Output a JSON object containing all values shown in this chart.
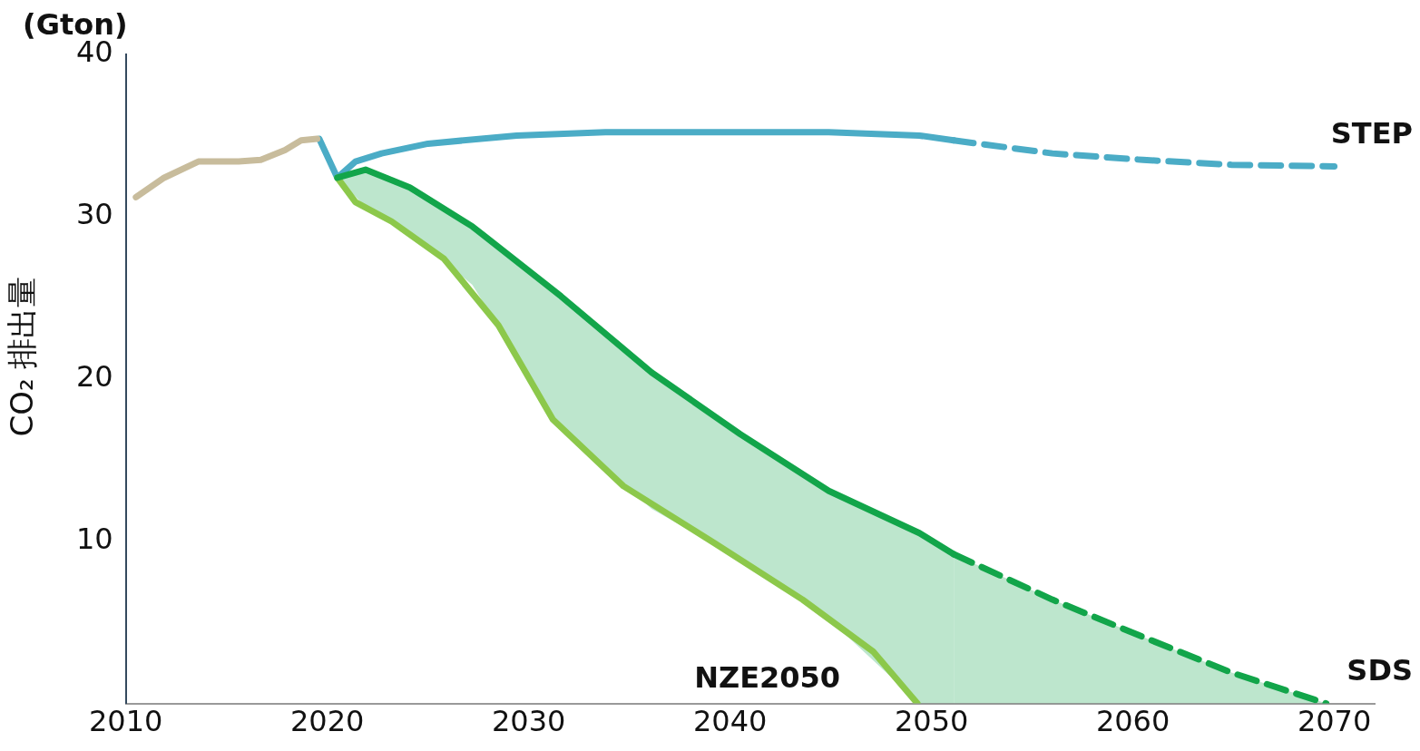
{
  "chart_data": {
    "type": "line",
    "ylabel": "CO₂ 排出量",
    "annotations": [
      "(Gton)"
    ],
    "xlim": [
      2010,
      2072
    ],
    "xticks": [
      2010,
      2020,
      2030,
      2040,
      2050,
      2060,
      2070
    ],
    "ylim": [
      0,
      40
    ],
    "yticks": [
      10,
      20,
      30,
      40
    ],
    "grid": false,
    "legend": false,
    "marker": "none",
    "series": [
      {
        "color": "#c8bc9c",
        "line_style": "solid",
        "x": [
          2010.5,
          2011.9,
          2013.6,
          2015.6,
          2016.7,
          2017.9,
          2018.7,
          2019.5
        ],
        "values": [
          31.2,
          32.4,
          33.4,
          33.4,
          33.5,
          34.1,
          34.7,
          34.8
        ]
      },
      {
        "color": "#12a54a",
        "line_style": "solid",
        "x": [
          2020.5,
          2021.9,
          2024.1,
          2027.2,
          2031.6,
          2036.1,
          2040.5,
          2044.9,
          2049.4,
          2051.1
        ],
        "values": [
          32.4,
          32.9,
          31.8,
          29.4,
          25.1,
          20.4,
          16.6,
          13.1,
          10.5,
          9.2
        ],
        "lower": [
          32.4,
          30.6,
          29.0,
          25.8,
          17.0,
          12.0,
          8.9,
          5.2,
          0,
          0
        ],
        "upper": [
          32.4,
          32.9,
          31.8,
          29.4,
          25.1,
          20.4,
          16.6,
          13.1,
          10.5,
          9.2
        ]
      },
      {
        "name": "SDS",
        "color": "#12a54a",
        "line_style": "dashed",
        "x": [
          2051.1,
          2056.0,
          2060.5,
          2064.9,
          2069.6
        ],
        "values": [
          9.2,
          6.4,
          4.1,
          1.9,
          0
        ],
        "lower": [
          0,
          0,
          0,
          0,
          0
        ],
        "upper": [
          9.2,
          6.4,
          4.1,
          1.9,
          0
        ]
      },
      {
        "name": "NZE2050",
        "color": "#8cc84b",
        "line_style": "solid",
        "x": [
          2020.5,
          2021.4,
          2023.2,
          2025.8,
          2028.5,
          2031.2,
          2034.7,
          2039.2,
          2043.6,
          2047.1,
          2049.3
        ],
        "values": [
          32.4,
          30.9,
          29.7,
          27.4,
          23.3,
          17.5,
          13.4,
          9.9,
          6.4,
          3.2,
          0
        ]
      },
      {
        "color": "#4bacc6",
        "line_style": "solid",
        "x": [
          2019.6,
          2020.5,
          2021.4,
          2022.7,
          2025.0,
          2029.4,
          2033.8,
          2038.3,
          2044.9,
          2049.4,
          2051.1
        ],
        "values": [
          34.8,
          32.4,
          33.4,
          33.9,
          34.5,
          35.0,
          35.2,
          35.2,
          35.2,
          35.0,
          34.7
        ]
      },
      {
        "name": "STEP",
        "color": "#4bacc6",
        "line_style": "dashed",
        "x": [
          2051.1,
          2056.0,
          2060.5,
          2064.9,
          2070.0
        ],
        "values": [
          34.7,
          33.9,
          33.5,
          33.2,
          33.1
        ]
      }
    ]
  }
}
